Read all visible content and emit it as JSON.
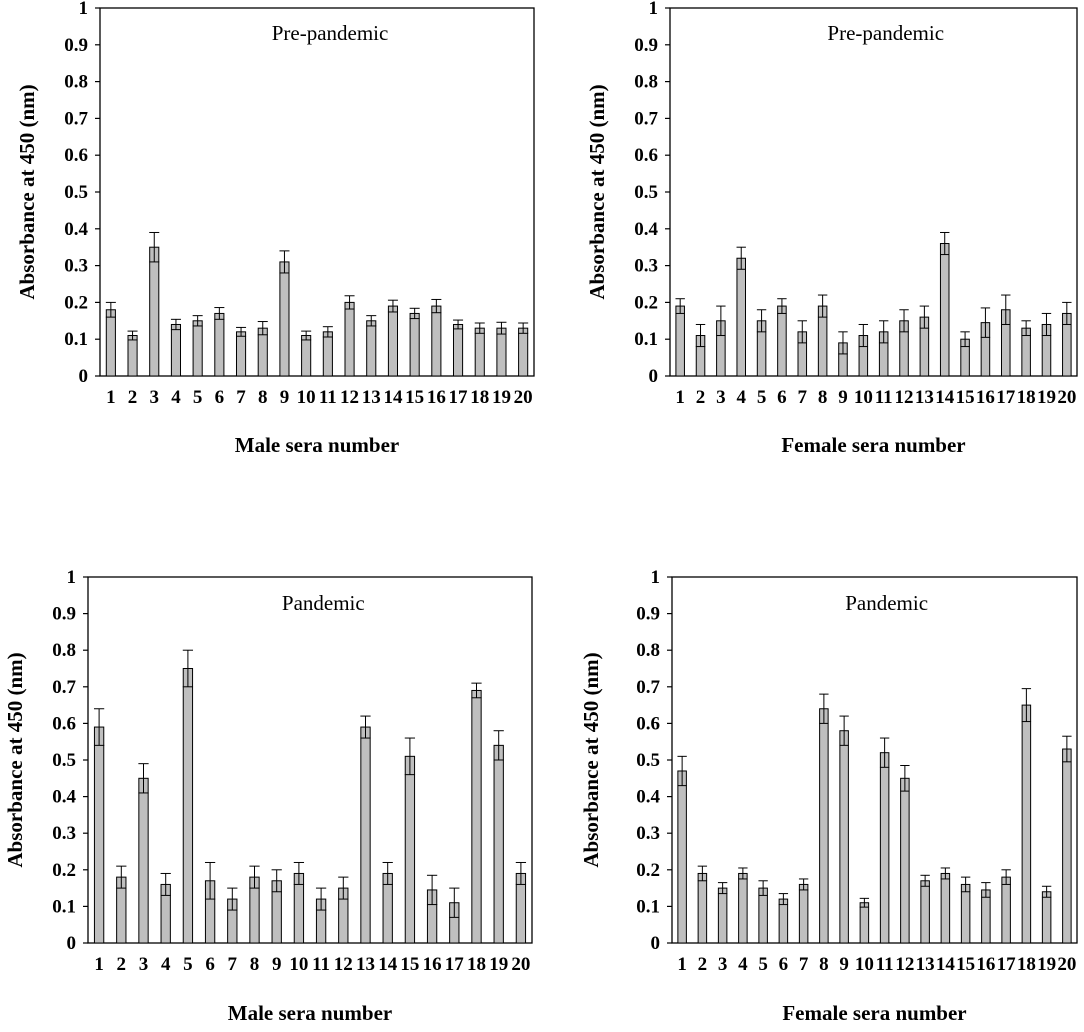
{
  "chart_data": [
    {
      "type": "bar",
      "title": "Pre-pandemic",
      "xlabel": "Male sera number",
      "ylabel": "Absorbance at 450 (nm)",
      "ylim": [
        0,
        1
      ],
      "yticks": [
        "0",
        "0.1",
        "0.2",
        "0.3",
        "0.4",
        "0.5",
        "0.6",
        "0.7",
        "0.8",
        "0.9",
        "1"
      ],
      "categories": [
        "1",
        "2",
        "3",
        "4",
        "5",
        "6",
        "7",
        "8",
        "9",
        "10",
        "11",
        "12",
        "13",
        "14",
        "15",
        "16",
        "17",
        "18",
        "19",
        "20"
      ],
      "values": [
        0.18,
        0.11,
        0.35,
        0.14,
        0.15,
        0.17,
        0.12,
        0.13,
        0.31,
        0.11,
        0.12,
        0.2,
        0.15,
        0.19,
        0.17,
        0.19,
        0.14,
        0.13,
        0.13,
        0.13
      ],
      "errors": [
        0.02,
        0.012,
        0.04,
        0.014,
        0.014,
        0.016,
        0.012,
        0.018,
        0.03,
        0.012,
        0.014,
        0.018,
        0.014,
        0.016,
        0.014,
        0.018,
        0.012,
        0.014,
        0.016,
        0.014
      ],
      "bar_color": "#bfbfbf",
      "grid": false
    },
    {
      "type": "bar",
      "title": "Pre-pandemic",
      "xlabel": "Female sera number",
      "ylabel": "Absorbance at 450 (nm)",
      "ylim": [
        0,
        1
      ],
      "yticks": [
        "0",
        "0.1",
        "0.2",
        "0.3",
        "0.4",
        "0.5",
        "0.6",
        "0.7",
        "0.8",
        "0.9",
        "1"
      ],
      "categories": [
        "1",
        "2",
        "3",
        "4",
        "5",
        "6",
        "7",
        "8",
        "9",
        "10",
        "11",
        "12",
        "13",
        "14",
        "15",
        "16",
        "17",
        "18",
        "19",
        "20"
      ],
      "values": [
        0.19,
        0.11,
        0.15,
        0.32,
        0.15,
        0.19,
        0.12,
        0.19,
        0.09,
        0.11,
        0.12,
        0.15,
        0.16,
        0.36,
        0.1,
        0.145,
        0.18,
        0.13,
        0.14,
        0.17
      ],
      "errors": [
        0.02,
        0.03,
        0.04,
        0.03,
        0.03,
        0.02,
        0.03,
        0.03,
        0.03,
        0.03,
        0.03,
        0.03,
        0.03,
        0.03,
        0.02,
        0.04,
        0.04,
        0.02,
        0.03,
        0.03
      ],
      "bar_color": "#bfbfbf",
      "grid": false
    },
    {
      "type": "bar",
      "title": "Pandemic",
      "xlabel": "Male sera number",
      "ylabel": "Absorbance at 450 (nm)",
      "ylim": [
        0,
        1
      ],
      "yticks": [
        "0",
        "0.1",
        "0.2",
        "0.3",
        "0.4",
        "0.5",
        "0.6",
        "0.7",
        "0.8",
        "0.9",
        "1"
      ],
      "categories": [
        "1",
        "2",
        "3",
        "4",
        "5",
        "6",
        "7",
        "8",
        "9",
        "10",
        "11",
        "12",
        "13",
        "14",
        "15",
        "16",
        "17",
        "18",
        "19",
        "20"
      ],
      "values": [
        0.59,
        0.18,
        0.45,
        0.16,
        0.75,
        0.17,
        0.12,
        0.18,
        0.17,
        0.19,
        0.12,
        0.15,
        0.59,
        0.19,
        0.51,
        0.145,
        0.11,
        0.69,
        0.54,
        0.19
      ],
      "errors": [
        0.05,
        0.03,
        0.04,
        0.03,
        0.05,
        0.05,
        0.03,
        0.03,
        0.03,
        0.03,
        0.03,
        0.03,
        0.03,
        0.03,
        0.05,
        0.04,
        0.04,
        0.02,
        0.04,
        0.03
      ],
      "bar_color": "#bfbfbf",
      "grid": false
    },
    {
      "type": "bar",
      "title": "Pandemic",
      "xlabel": "Female sera number",
      "ylabel": "Absorbance at 450 (nm)",
      "ylim": [
        0,
        1
      ],
      "yticks": [
        "0",
        "0.1",
        "0.2",
        "0.3",
        "0.4",
        "0.5",
        "0.6",
        "0.7",
        "0.8",
        "0.9",
        "1"
      ],
      "categories": [
        "1",
        "2",
        "3",
        "4",
        "5",
        "6",
        "7",
        "8",
        "9",
        "10",
        "11",
        "12",
        "13",
        "14",
        "15",
        "16",
        "17",
        "18",
        "19",
        "20"
      ],
      "values": [
        0.47,
        0.19,
        0.15,
        0.19,
        0.15,
        0.12,
        0.16,
        0.64,
        0.58,
        0.11,
        0.52,
        0.45,
        0.17,
        0.19,
        0.16,
        0.145,
        0.18,
        0.65,
        0.14,
        0.53
      ],
      "errors": [
        0.04,
        0.02,
        0.015,
        0.015,
        0.02,
        0.015,
        0.015,
        0.04,
        0.04,
        0.012,
        0.04,
        0.035,
        0.015,
        0.015,
        0.02,
        0.02,
        0.02,
        0.045,
        0.015,
        0.035
      ],
      "bar_color": "#bfbfbf",
      "grid": false
    }
  ]
}
